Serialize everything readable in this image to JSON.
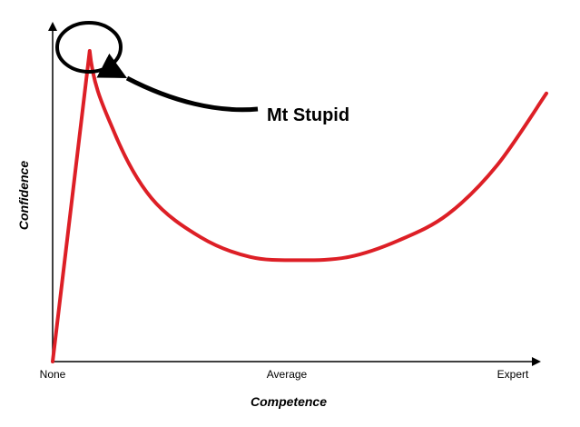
{
  "chart_data": {
    "type": "line",
    "title": "",
    "xlabel": "Competence",
    "ylabel": "Confidence",
    "x_categories": [
      "None",
      "Average",
      "Expert"
    ],
    "xlim": [
      0,
      2
    ],
    "ylim": [
      0,
      1
    ],
    "grid": false,
    "legend": "none",
    "series": [
      {
        "color": "#dd1f26",
        "x": [
          0,
          0.15,
          0.25,
          0.4,
          0.6,
          0.8,
          1.0,
          1.2,
          1.4,
          1.6,
          1.8,
          2.0
        ],
        "values": [
          0,
          0.95,
          0.7,
          0.5,
          0.38,
          0.32,
          0.31,
          0.32,
          0.37,
          0.45,
          0.6,
          0.82
        ]
      }
    ],
    "annotations": [
      {
        "text": "Mt Stupid",
        "target_x": 0.15,
        "target_y": 0.95,
        "marker": "circle-with-arrow"
      }
    ],
    "colors": {
      "line": "#dd1f26",
      "axis": "#000000",
      "annotation": "#000000"
    }
  }
}
